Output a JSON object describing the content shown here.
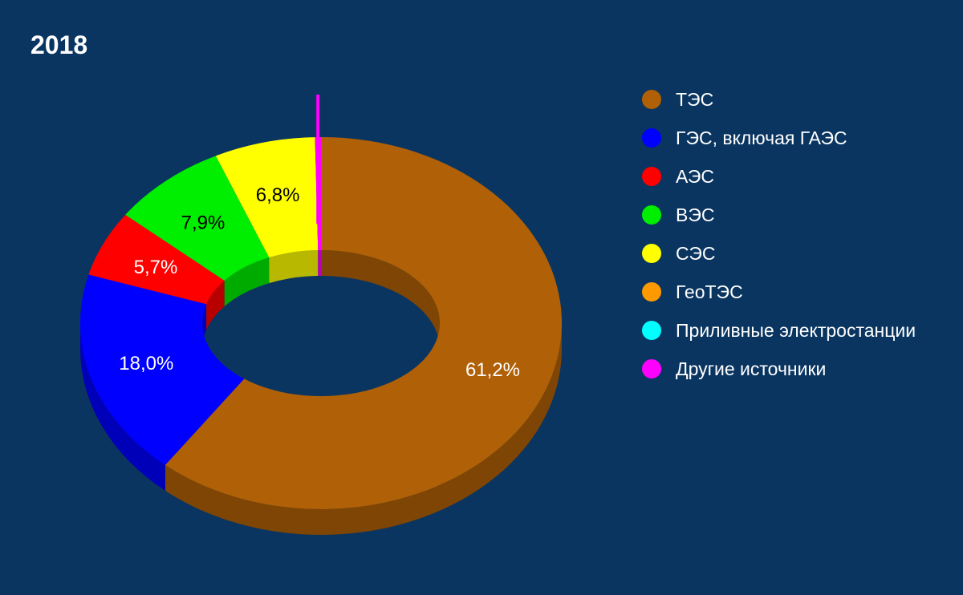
{
  "chart_data": {
    "type": "pie",
    "title": "2018",
    "categories": [
      "ТЭС",
      "ГЭС, включая ГАЭС",
      "АЭС",
      "ВЭС",
      "СЭС",
      "ГеоТЭС",
      "Приливные электростанции",
      "Другие источники"
    ],
    "values": [
      61.2,
      18.0,
      5.7,
      7.9,
      6.8,
      0,
      0,
      0.4
    ],
    "labels": [
      "61,2%",
      "18,0%",
      "5,7%",
      "7,9%",
      "6,8%",
      "",
      "",
      ""
    ],
    "colors": [
      "#b06006",
      "#0000ff",
      "#ff0000",
      "#00ee00",
      "#ffff00",
      "#ff9900",
      "#00ffff",
      "#ff00ff"
    ],
    "label_colors": [
      "#ffffff",
      "#ffffff",
      "#ffffff",
      "#000000",
      "#000000",
      "#000000",
      "#000000",
      "#000000"
    ],
    "style": "3d-donut",
    "legend_position": "right",
    "background": "#0a3560"
  }
}
